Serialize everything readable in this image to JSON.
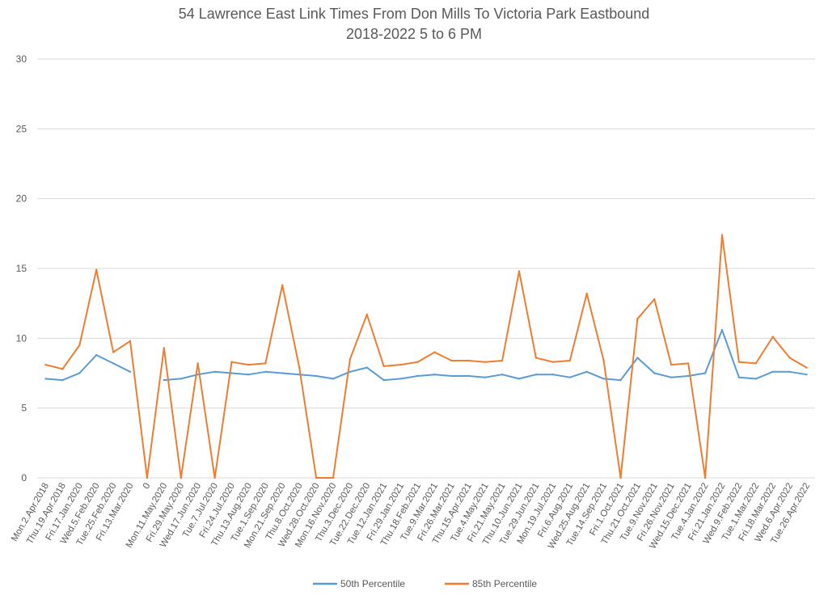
{
  "chart_data": {
    "type": "line",
    "title": "54 Lawrence East Link Times From Don Mills To Victoria Park Eastbound",
    "subtitle": "2018-2022 5 to 6 PM",
    "ylim": [
      0,
      30
    ],
    "yticks": [
      0,
      5,
      10,
      15,
      20,
      25,
      30
    ],
    "grid": true,
    "legend_position": "bottom",
    "categories": [
      "Mon.2.Apr.2018",
      "Thu.19.Apr.2018",
      "Fri.17.Jan.2020",
      "Wed.5.Feb.2020",
      "Tue.25.Feb.2020",
      "Fri.13.Mar.2020",
      "0",
      "Mon.11.May.2020",
      "Fri.29.May.2020",
      "Wed.17.Jun.2020",
      "Tue.7.Jul.2020",
      "Fri.24.Jul.2020",
      "Thu.13.Aug.2020",
      "Tue.1.Sep.2020",
      "Mon.21.Sep.2020",
      "Thu.8.Oct.2020",
      "Wed.28.Oct.2020",
      "Mon.16.Nov.2020",
      "Thu.3.Dec.2020",
      "Tue.22.Dec.2020",
      "Tue.12.Jan.2021",
      "Fri.29.Jan.2021",
      "Thu.18.Feb.2021",
      "Tue.9.Mar.2021",
      "Fri.26.Mar.2021",
      "Thu.15.Apr.2021",
      "Tue.4.May.2021",
      "Fri.21.May.2021",
      "Thu.10.Jun.2021",
      "Tue.29.Jun.2021",
      "Mon.19.Jul.2021",
      "Fri.6.Aug.2021",
      "Wed.25.Aug.2021",
      "Tue.14.Sep.2021",
      "Fri.1.Oct.2021",
      "Thu.21.Oct.2021",
      "Tue.9.Nov.2021",
      "Fri.26.Nov.2021",
      "Wed.15.Dec.2021",
      "Tue.4.Jan.2022",
      "Fri.21.Jan.2022",
      "Wed.9.Feb.2022",
      "Tue.1.Mar.2022",
      "Fri.18.Mar.2022",
      "Wed.6.Apr.2022",
      "Tue.26.Apr.2022"
    ],
    "series": [
      {
        "name": "50th Percentile",
        "color": "#5b9bd5",
        "values": [
          7.1,
          7.0,
          7.5,
          8.8,
          8.2,
          7.6,
          null,
          7.0,
          7.1,
          7.4,
          7.6,
          7.5,
          7.4,
          7.6,
          7.5,
          7.4,
          7.3,
          7.1,
          7.6,
          7.9,
          7.0,
          7.1,
          7.3,
          7.4,
          7.3,
          7.3,
          7.2,
          7.4,
          7.1,
          7.4,
          7.4,
          7.2,
          7.6,
          7.1,
          7.0,
          8.6,
          7.5,
          7.2,
          7.3,
          7.5,
          10.6,
          7.2,
          7.1,
          7.6,
          7.6,
          7.4
        ]
      },
      {
        "name": "85th Percentile",
        "color": "#ed7d31",
        "values": [
          8.1,
          7.8,
          9.5,
          14.9,
          9.0,
          9.8,
          0,
          9.3,
          0,
          8.2,
          0,
          8.3,
          8.1,
          8.2,
          13.8,
          7.9,
          0,
          0,
          8.5,
          11.7,
          8.0,
          8.1,
          8.3,
          9.0,
          8.4,
          8.4,
          8.3,
          8.4,
          14.8,
          8.6,
          8.3,
          8.4,
          13.2,
          8.4,
          0,
          11.4,
          12.8,
          8.1,
          8.2,
          0,
          17.4,
          8.3,
          8.2,
          10.1,
          8.6,
          7.9
        ]
      }
    ]
  }
}
